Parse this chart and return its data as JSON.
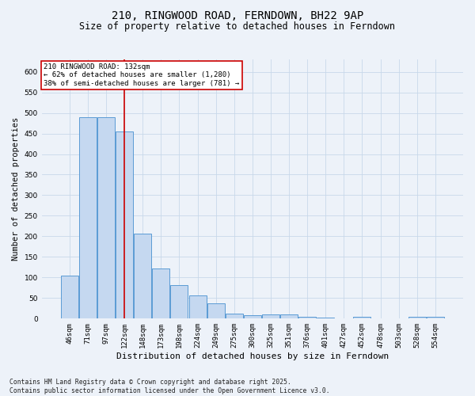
{
  "title_line1": "210, RINGWOOD ROAD, FERNDOWN, BH22 9AP",
  "title_line2": "Size of property relative to detached houses in Ferndown",
  "xlabel": "Distribution of detached houses by size in Ferndown",
  "ylabel": "Number of detached properties",
  "footer": "Contains HM Land Registry data © Crown copyright and database right 2025.\nContains public sector information licensed under the Open Government Licence v3.0.",
  "categories": [
    "46sqm",
    "71sqm",
    "97sqm",
    "122sqm",
    "148sqm",
    "173sqm",
    "198sqm",
    "224sqm",
    "249sqm",
    "275sqm",
    "300sqm",
    "325sqm",
    "351sqm",
    "376sqm",
    "401sqm",
    "427sqm",
    "452sqm",
    "478sqm",
    "503sqm",
    "528sqm",
    "554sqm"
  ],
  "values": [
    105,
    490,
    490,
    455,
    207,
    122,
    82,
    57,
    38,
    13,
    8,
    10,
    10,
    5,
    3,
    0,
    5,
    0,
    0,
    5,
    5
  ],
  "bar_color": "#c5d8f0",
  "bar_edge_color": "#5b9bd5",
  "grid_color": "#c8d8ea",
  "annotation_box_color": "#ffffff",
  "annotation_border_color": "#cc0000",
  "annotation_text_line1": "210 RINGWOOD ROAD: 132sqm",
  "annotation_text_line2": "← 62% of detached houses are smaller (1,280)",
  "annotation_text_line3": "38% of semi-detached houses are larger (781) →",
  "redline_bin": 3,
  "ylim": [
    0,
    630
  ],
  "yticks": [
    0,
    50,
    100,
    150,
    200,
    250,
    300,
    350,
    400,
    450,
    500,
    550,
    600
  ],
  "annotation_fontsize": 6.5,
  "title_fontsize1": 10,
  "title_fontsize2": 8.5,
  "xlabel_fontsize": 8,
  "ylabel_fontsize": 7.5,
  "tick_fontsize": 6.5,
  "footer_fontsize": 5.8,
  "background_color": "#edf2f9"
}
